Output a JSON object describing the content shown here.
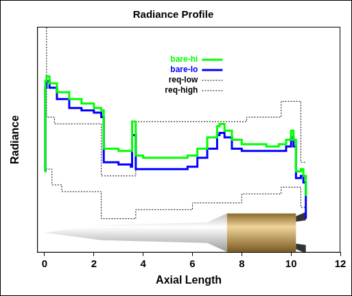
{
  "chart_data": {
    "type": "line",
    "title": "Radiance Profile",
    "x_label": "Axial Length",
    "y_label": "Radiance",
    "xlim": [
      -0.3,
      12
    ],
    "xticks": [
      0,
      2,
      4,
      6,
      8,
      10,
      12
    ],
    "ylim": [
      0,
      100
    ],
    "grid": false,
    "legend": "top",
    "tick_labels": "x",
    "series": [
      {
        "name": "bare-hi",
        "color": "#00ff00",
        "line_style": "solid",
        "x": [
          0,
          0.03,
          0.08,
          0.2,
          0.5,
          1.0,
          1.5,
          2.0,
          2.3,
          2.4,
          3.0,
          3.5,
          3.55,
          3.7,
          4.0,
          5.0,
          5.5,
          5.8,
          6.2,
          6.6,
          7.0,
          7.1,
          7.3,
          7.6,
          8.0,
          9.0,
          9.5,
          9.8,
          10.0,
          10.1,
          10.2,
          10.4,
          10.5,
          10.6
        ],
        "values": [
          36,
          76,
          78,
          75,
          71,
          68,
          66,
          64,
          63,
          46,
          45,
          45,
          58,
          43,
          42,
          42,
          42,
          43,
          46,
          51,
          56,
          57,
          54,
          50,
          48,
          47,
          48,
          50,
          54,
          50,
          36,
          37,
          34,
          25
        ]
      },
      {
        "name": "bare-lo",
        "color": "#0000ff",
        "line_style": "solid",
        "x": [
          0,
          0.03,
          0.08,
          0.2,
          0.5,
          1.0,
          1.5,
          2.0,
          2.3,
          2.4,
          3.0,
          3.5,
          3.55,
          3.7,
          4.0,
          5.0,
          5.5,
          5.8,
          6.2,
          6.6,
          7.0,
          7.1,
          7.3,
          7.6,
          8.0,
          9.0,
          9.5,
          9.8,
          10.0,
          10.1,
          10.2,
          10.4,
          10.5,
          10.6
        ],
        "values": [
          36,
          73,
          76,
          73,
          68,
          64,
          63,
          62,
          60,
          40,
          39,
          38,
          52,
          37,
          37,
          37,
          37,
          38,
          42,
          46,
          52,
          53,
          51,
          46,
          45,
          45,
          45,
          47,
          51,
          47,
          33,
          34,
          31,
          15
        ]
      },
      {
        "name": "req-low",
        "color": "#000000",
        "line_style": "dotted",
        "x": [
          0.05,
          0.3,
          0.7,
          2.3,
          3.7,
          6.0,
          8.0,
          9.6,
          10.4,
          10.6
        ],
        "values": [
          37,
          30,
          27,
          15,
          19,
          22,
          26,
          29,
          20,
          20
        ]
      },
      {
        "name": "req-high",
        "color": "#000000",
        "line_style": "dotted",
        "x": [
          0,
          0.08,
          0.4,
          2.3,
          3.7,
          8.2,
          9.6,
          10.4,
          10.6
        ],
        "values": [
          100,
          60,
          57,
          34,
          58,
          60,
          67,
          40,
          40
        ]
      }
    ]
  }
}
